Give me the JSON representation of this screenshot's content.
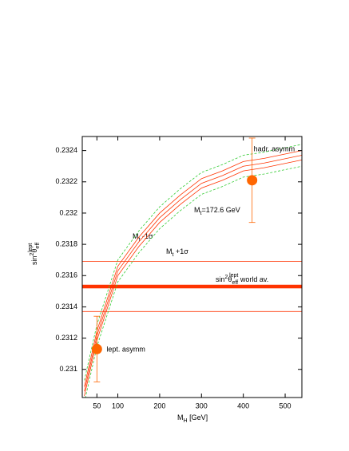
{
  "chart_data": {
    "type": "line",
    "xlabel": [
      "M",
      "H",
      " [GeV]"
    ],
    "ylabel": [
      "sin",
      "2",
      "θ",
      "eff",
      "lept"
    ],
    "xlim": [
      15,
      540
    ],
    "ylim": [
      0.23082,
      0.23249
    ],
    "xticks": [
      50,
      100,
      200,
      300,
      400,
      500
    ],
    "yticks": [
      0.231,
      0.2312,
      0.2314,
      0.2316,
      0.2318,
      0.232,
      0.2322,
      0.2324
    ],
    "x": [
      20,
      50,
      100,
      150,
      200,
      250,
      300,
      350,
      400,
      450,
      540
    ],
    "series": [
      {
        "color": "#ff3300",
        "dash": false,
        "values": [
          0.23086,
          0.231215,
          0.23163,
          0.231815,
          0.23197,
          0.232087,
          0.23219,
          0.23224,
          0.2323,
          0.23232,
          0.23237
        ]
      },
      {
        "color": "#ff3300",
        "dash": false,
        "values": [
          0.23089,
          0.231245,
          0.23166,
          0.231845,
          0.232,
          0.232117,
          0.23222,
          0.23227,
          0.23233,
          0.23235,
          0.2324
        ]
      },
      {
        "color": "#ff3300",
        "dash": false,
        "values": [
          0.23083,
          0.231185,
          0.2316,
          0.231785,
          0.23194,
          0.232057,
          0.23216,
          0.23221,
          0.23227,
          0.23229,
          0.23234
        ]
      },
      {
        "color": "#33cc33",
        "dash": true,
        "values": [
          0.23093,
          0.231285,
          0.2317,
          0.231885,
          0.23204,
          0.232157,
          0.23226,
          0.23231,
          0.23237,
          0.23239,
          0.23244
        ]
      },
      {
        "color": "#33cc33",
        "dash": true,
        "values": [
          0.23079,
          0.231145,
          0.23156,
          0.231745,
          0.2319,
          0.232017,
          0.23212,
          0.23217,
          0.23223,
          0.23225,
          0.2323
        ]
      }
    ],
    "world_average": {
      "value": 0.23153,
      "err": 0.00016,
      "color": "#ff3300"
    },
    "points": [
      {
        "label": "lept. asymm",
        "x": 50,
        "y": 0.23113,
        "err": 0.00021,
        "color": "#ff6600"
      },
      {
        "label": "hadr. asymm",
        "x": 421,
        "y": 0.23221,
        "err": 0.00027,
        "color": "#ff6600"
      }
    ],
    "annotations": [
      [
        "M",
        "t",
        "=172.6 GeV"
      ],
      [
        "M",
        "t",
        " -1σ"
      ],
      [
        "M",
        "t",
        " +1σ"
      ],
      [
        "sin",
        "2",
        "θ",
        "eff",
        "lept",
        " world av."
      ]
    ]
  }
}
